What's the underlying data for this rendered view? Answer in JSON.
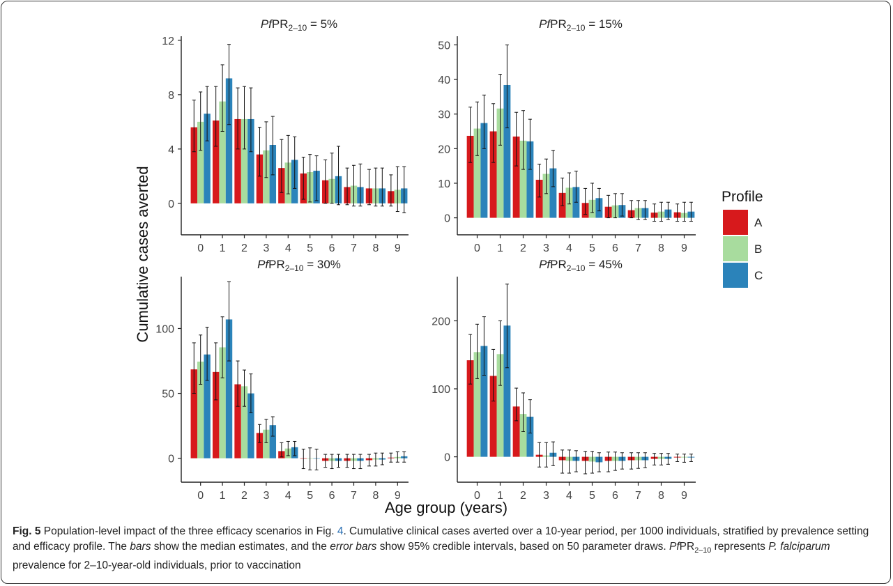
{
  "chart_data": {
    "type": "bar",
    "xlabel": "Age group (years)",
    "ylabel": "Cumulative cases averted",
    "legend": {
      "title": "Profile",
      "placement": "right",
      "entries": [
        {
          "label": "A",
          "color": "#d7191c"
        },
        {
          "label": "B",
          "color": "#a8dc9e"
        },
        {
          "label": "C",
          "color": "#2b83ba"
        }
      ]
    },
    "categories": [
      "0",
      "1",
      "2",
      "3",
      "4",
      "5",
      "6",
      "7",
      "8",
      "9"
    ],
    "panels": [
      {
        "title_pre": "Pf",
        "title_main": "PR",
        "title_sub": "2–10",
        "title_post": " = 5%",
        "ylim": [
          -1.7,
          12.3
        ],
        "yticks": [
          0,
          4,
          8,
          12
        ],
        "series": [
          {
            "profile": "A",
            "values": [
              5.6,
              6.1,
              6.2,
              3.6,
              2.6,
              2.2,
              1.7,
              1.2,
              1.1,
              0.9
            ],
            "lower": [
              3.8,
              4.2,
              4.0,
              2.0,
              0.8,
              0.3,
              0.0,
              -0.1,
              -0.1,
              -0.2
            ],
            "upper": [
              7.6,
              8.6,
              8.5,
              5.6,
              4.7,
              3.4,
              3.2,
              2.6,
              2.5,
              2.1
            ]
          },
          {
            "profile": "B",
            "values": [
              6.0,
              7.5,
              6.2,
              3.9,
              3.0,
              2.3,
              1.8,
              1.3,
              1.1,
              1.0
            ],
            "lower": [
              3.9,
              5.3,
              4.0,
              1.9,
              0.7,
              0.1,
              0.0,
              -0.2,
              -0.2,
              -0.6
            ],
            "upper": [
              8.2,
              10.2,
              8.6,
              6.0,
              5.0,
              3.6,
              3.7,
              2.8,
              2.6,
              2.7
            ]
          },
          {
            "profile": "C",
            "values": [
              6.6,
              9.2,
              6.2,
              4.3,
              3.2,
              2.4,
              2.0,
              1.2,
              1.1,
              1.1
            ],
            "lower": [
              4.6,
              5.8,
              3.8,
              2.1,
              1.1,
              0.2,
              -0.1,
              -0.2,
              -0.2,
              -0.7
            ],
            "upper": [
              8.6,
              11.7,
              8.5,
              6.4,
              4.9,
              3.5,
              4.2,
              2.9,
              2.6,
              2.7
            ]
          }
        ]
      },
      {
        "title_pre": "Pf",
        "title_main": "PR",
        "title_sub": "2–10",
        "title_post": " = 15%",
        "ylim": [
          -2.5,
          52.5
        ],
        "yticks": [
          0,
          10,
          20,
          30,
          40,
          50
        ],
        "series": [
          {
            "profile": "A",
            "values": [
              23.7,
              25.0,
              23.5,
              11.0,
              7.2,
              4.3,
              3.2,
              2.2,
              1.5,
              1.6
            ],
            "lower": [
              16.0,
              16.0,
              15.0,
              6.0,
              3.5,
              1.0,
              0.0,
              0.0,
              -1.0,
              -1.0
            ],
            "upper": [
              32.0,
              33.0,
              30.5,
              15.5,
              11.5,
              8.5,
              6.5,
              5.0,
              4.0,
              4.0
            ]
          },
          {
            "profile": "B",
            "values": [
              25.8,
              31.6,
              22.3,
              12.7,
              8.7,
              5.2,
              3.6,
              2.8,
              1.8,
              1.4
            ],
            "lower": [
              18.0,
              21.0,
              14.0,
              7.0,
              4.0,
              1.5,
              0.0,
              -0.5,
              -1.0,
              -1.0
            ],
            "upper": [
              33.5,
              41.5,
              31.0,
              17.0,
              13.0,
              10.0,
              7.0,
              5.0,
              4.5,
              4.5
            ]
          },
          {
            "profile": "C",
            "values": [
              27.4,
              38.4,
              22.1,
              14.3,
              8.9,
              5.7,
              3.7,
              2.8,
              2.4,
              1.8
            ],
            "lower": [
              20.0,
              26.0,
              14.0,
              9.0,
              4.5,
              2.0,
              0.5,
              -0.5,
              -0.5,
              -1.0
            ],
            "upper": [
              35.5,
              50.0,
              28.5,
              19.5,
              13.5,
              8.5,
              7.0,
              5.0,
              4.5,
              4.5
            ]
          }
        ]
      },
      {
        "title_pre": "Pf",
        "title_main": "PR",
        "title_sub": "2–10",
        "title_post": " = 30%",
        "ylim": [
          -12,
          140
        ],
        "yticks": [
          0,
          50,
          100
        ],
        "series": [
          {
            "profile": "A",
            "values": [
              68.5,
              66.5,
              57.0,
              19.5,
              5.5,
              0.0,
              -2.0,
              -2.0,
              -1.5,
              0.5
            ],
            "lower": [
              50,
              45,
              40,
              12,
              1,
              -8,
              -7,
              -7,
              -6,
              -3
            ],
            "upper": [
              89,
              89,
              75,
              26,
              12,
              7,
              3,
              3,
              3,
              4
            ]
          },
          {
            "profile": "B",
            "values": [
              74.5,
              85.5,
              55.5,
              22.0,
              7.5,
              0.0,
              -2.0,
              -2.0,
              -1.0,
              1.0
            ],
            "lower": [
              57,
              62,
              40,
              12,
              2,
              -9,
              -8,
              -8,
              -6,
              -3
            ],
            "upper": [
              95,
              109,
              68,
              30,
              13,
              8,
              3,
              3,
              4,
              5
            ]
          },
          {
            "profile": "C",
            "values": [
              80.0,
              107.0,
              50.0,
              25.5,
              8.5,
              0.0,
              -2.0,
              -2.0,
              -1.0,
              1.5
            ],
            "lower": [
              60,
              75,
              35,
              17,
              2,
              -9,
              -7,
              -8,
              -5,
              -3
            ],
            "upper": [
              101,
              136,
              65,
              32,
              13,
              7,
              3,
              3,
              4,
              5
            ]
          }
        ]
      },
      {
        "title_pre": "Pf",
        "title_main": "PR",
        "title_sub": "2–10",
        "title_post": " = 45%",
        "ylim": [
          -25,
          265
        ],
        "yticks": [
          0,
          100,
          200
        ],
        "series": [
          {
            "profile": "A",
            "values": [
              142,
              119,
              74,
              3,
              -5,
              -6,
              -6,
              -5,
              -3,
              -1
            ],
            "lower": [
              107,
              82,
              53,
              -15,
              -24,
              -25,
              -22,
              -18,
              -12,
              -7
            ],
            "upper": [
              180,
              158,
              101,
              21,
              10,
              8,
              7,
              6,
              5,
              4
            ]
          },
          {
            "profile": "B",
            "values": [
              154,
              151,
              63,
              2,
              -6,
              -7,
              -6,
              -5,
              -3,
              -1
            ],
            "lower": [
              115,
              105,
              37,
              -15,
              -24,
              -24,
              -20,
              -17,
              -12,
              -8
            ],
            "upper": [
              195,
              200,
              94,
              21,
              10,
              8,
              7,
              6,
              5,
              4
            ]
          },
          {
            "profile": "C",
            "values": [
              163,
              193,
              59,
              6,
              -6,
              -8,
              -6,
              -5,
              -3,
              -1
            ],
            "lower": [
              120,
              131,
              35,
              -13,
              -22,
              -22,
              -18,
              -16,
              -11,
              -7
            ],
            "upper": [
              206,
              254,
              84,
              22,
              9,
              6,
              6,
              6,
              5,
              4
            ]
          }
        ]
      }
    ]
  },
  "caption": {
    "label": "Fig. 5",
    "t1": " Population-level impact of the three efficacy scenarios in Fig. ",
    "figref": "4",
    "t2": ". Cumulative clinical cases averted over a 10-year period, per 1000 individuals, stratified by prevalence setting and efficacy profile. The ",
    "e1": "bars",
    "t3": " show the median estimates, and the ",
    "e2": "error bars",
    "t4": " show 95% credible intervals, based on 50 parameter draws. ",
    "pf": "Pf",
    "pr": "PR",
    "sub": "2–10",
    "t5": " represents ",
    "species": "P. falciparum",
    "t6": " prevalence for 2–10-year-old individuals, prior to vaccination"
  },
  "colors": {
    "figref": "#2a6fb3",
    "axis": "#222222"
  }
}
